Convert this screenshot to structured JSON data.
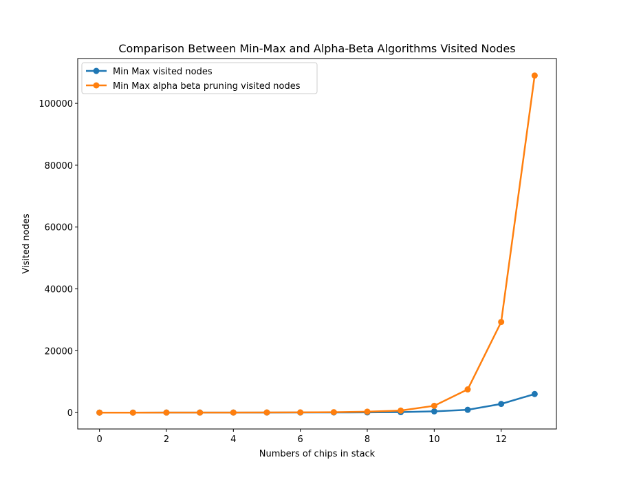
{
  "chart_data": {
    "type": "line",
    "title": "Comparison Between Min-Max and Alpha-Beta Algorithms Visited Nodes",
    "xlabel": "Numbers of chips in stack",
    "ylabel": "Visited nodes",
    "x": [
      0,
      1,
      2,
      3,
      4,
      5,
      6,
      7,
      8,
      9,
      10,
      11,
      12,
      13
    ],
    "xlim": [
      -0.65,
      13.65
    ],
    "ylim": [
      -5300,
      114500
    ],
    "xticks": [
      0,
      2,
      4,
      6,
      8,
      10,
      12
    ],
    "yticks": [
      0,
      20000,
      40000,
      60000,
      80000,
      100000
    ],
    "xtick_labels": [
      "0",
      "2",
      "4",
      "6",
      "8",
      "10",
      "12"
    ],
    "ytick_labels": [
      "0",
      "20000",
      "40000",
      "60000",
      "80000",
      "100000"
    ],
    "grid": false,
    "legend_position": "top-left",
    "series": [
      {
        "name": "Min Max visited nodes",
        "color": "#1f77b4",
        "values": [
          1,
          2,
          4,
          8,
          12,
          20,
          30,
          45,
          70,
          150,
          400,
          900,
          2800,
          6000
        ]
      },
      {
        "name": "Min Max alpha beta pruning visited nodes",
        "color": "#ff7f0e",
        "values": [
          1,
          2,
          5,
          10,
          20,
          40,
          70,
          130,
          300,
          650,
          2200,
          7500,
          29300,
          109000
        ]
      }
    ]
  }
}
